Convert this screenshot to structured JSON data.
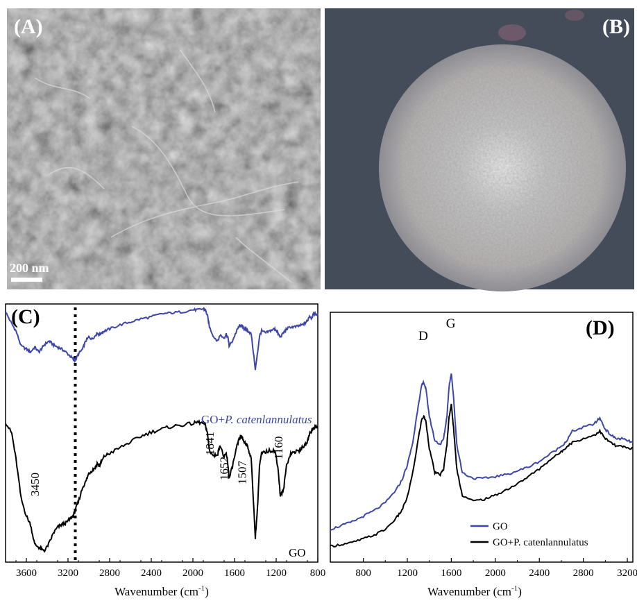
{
  "panels": {
    "A": {
      "label": "(A)",
      "scalebar": "200 nm"
    },
    "B": {
      "label": "(B)"
    },
    "C": {
      "label": "(C)"
    },
    "D": {
      "label": "(D)"
    }
  },
  "chart_data": [
    {
      "type": "line",
      "panel": "C",
      "xlabel": "Wavenumber (cm",
      "xlabel_sup": "-1",
      "xlabel_close": ")",
      "xlim": [
        3800,
        800
      ],
      "x_reversed": true,
      "y_ticks_shown": false,
      "xticks": [
        3600,
        3200,
        2800,
        2400,
        2000,
        1600,
        1200,
        800
      ],
      "dotted_line_x": 3130,
      "series": [
        {
          "name": "GO+P. catenlannulatus",
          "label_prefix": "GO+",
          "label_italic": "P. catenlannulatus",
          "color": "#3b46a8",
          "x": [
            3800,
            3740,
            3700,
            3650,
            3600,
            3560,
            3520,
            3480,
            3450,
            3420,
            3380,
            3340,
            3300,
            3260,
            3220,
            3180,
            3150,
            3130,
            3100,
            3060,
            3030,
            3000,
            2970,
            2940,
            2920,
            2900,
            2880,
            2850,
            2800,
            2700,
            2600,
            2500,
            2400,
            2300,
            2200,
            2100,
            2000,
            1950,
            1900,
            1880,
            1860,
            1841,
            1800,
            1760,
            1740,
            1700,
            1680,
            1660,
            1652,
            1620,
            1580,
            1560,
            1540,
            1520,
            1507,
            1490,
            1470,
            1440,
            1400,
            1380,
            1360,
            1340,
            1300,
            1260,
            1220,
            1200,
            1180,
            1160,
            1130,
            1100,
            1060,
            1020,
            980,
            950,
            920,
            900,
            880,
            860,
            840,
            820,
            800
          ],
          "y": [
            0.97,
            0.85,
            0.78,
            0.63,
            0.6,
            0.57,
            0.62,
            0.57,
            0.61,
            0.65,
            0.68,
            0.64,
            0.62,
            0.6,
            0.57,
            0.53,
            0.5,
            0.49,
            0.55,
            0.6,
            0.68,
            0.72,
            0.7,
            0.73,
            0.76,
            0.74,
            0.76,
            0.78,
            0.8,
            0.84,
            0.87,
            0.9,
            0.92,
            0.95,
            0.96,
            0.97,
            0.99,
            0.99,
            1.0,
            0.99,
            0.93,
            0.82,
            0.72,
            0.68,
            0.74,
            0.71,
            0.75,
            0.7,
            0.63,
            0.68,
            0.78,
            0.82,
            0.84,
            0.82,
            0.8,
            0.8,
            0.78,
            0.75,
            0.4,
            0.55,
            0.73,
            0.78,
            0.76,
            0.78,
            0.8,
            0.79,
            0.75,
            0.72,
            0.76,
            0.8,
            0.82,
            0.82,
            0.83,
            0.84,
            0.86,
            0.88,
            0.93,
            0.91,
            0.95,
            0.95,
            0.93
          ]
        },
        {
          "name": "GO",
          "color": "#000000",
          "x": [
            3800,
            3740,
            3700,
            3650,
            3600,
            3560,
            3520,
            3480,
            3450,
            3420,
            3380,
            3340,
            3300,
            3260,
            3220,
            3180,
            3150,
            3130,
            3100,
            3060,
            3030,
            3000,
            2970,
            2940,
            2920,
            2900,
            2880,
            2850,
            2800,
            2700,
            2600,
            2500,
            2400,
            2300,
            2200,
            2100,
            2000,
            1950,
            1900,
            1880,
            1860,
            1841,
            1800,
            1760,
            1740,
            1700,
            1680,
            1660,
            1652,
            1620,
            1580,
            1560,
            1540,
            1520,
            1507,
            1490,
            1470,
            1440,
            1400,
            1380,
            1360,
            1340,
            1300,
            1260,
            1220,
            1200,
            1180,
            1160,
            1130,
            1100,
            1060,
            1020,
            980,
            950,
            920,
            900,
            880,
            860,
            840,
            820,
            800
          ],
          "y": [
            0.96,
            0.88,
            0.7,
            0.42,
            0.3,
            0.24,
            0.1,
            0.08,
            0.06,
            0.06,
            0.11,
            0.18,
            0.22,
            0.24,
            0.25,
            0.28,
            0.3,
            0.34,
            0.4,
            0.5,
            0.54,
            0.6,
            0.62,
            0.64,
            0.67,
            0.65,
            0.68,
            0.72,
            0.74,
            0.78,
            0.82,
            0.86,
            0.89,
            0.91,
            0.93,
            0.94,
            0.95,
            0.96,
            0.95,
            0.94,
            0.88,
            0.76,
            0.72,
            0.74,
            0.8,
            0.71,
            0.74,
            0.64,
            0.56,
            0.65,
            0.78,
            0.83,
            0.86,
            0.84,
            0.82,
            0.81,
            0.78,
            0.7,
            0.15,
            0.35,
            0.65,
            0.74,
            0.75,
            0.76,
            0.76,
            0.72,
            0.62,
            0.44,
            0.48,
            0.66,
            0.74,
            0.75,
            0.76,
            0.78,
            0.8,
            0.82,
            0.88,
            0.9,
            0.92,
            0.93,
            0.92
          ]
        }
      ],
      "annotations": [
        "3450",
        "1841",
        "1652",
        "1507",
        "1160"
      ]
    },
    {
      "type": "line",
      "panel": "D",
      "xlabel": "Wavenumber (cm",
      "xlabel_sup": "-1",
      "xlabel_close": ")",
      "xlim": [
        500,
        3250
      ],
      "xticks": [
        800,
        1200,
        1600,
        2000,
        2400,
        2800,
        3200
      ],
      "y_ticks_shown": false,
      "peak_labels": [
        "D",
        "G"
      ],
      "series": [
        {
          "name": "GO",
          "color": "#3b46a8",
          "x": [
            500,
            600,
            700,
            800,
            900,
            1000,
            1100,
            1150,
            1200,
            1250,
            1300,
            1330,
            1350,
            1370,
            1400,
            1450,
            1500,
            1530,
            1560,
            1580,
            1600,
            1620,
            1650,
            1700,
            1800,
            1900,
            2000,
            2100,
            2200,
            2300,
            2400,
            2500,
            2600,
            2650,
            2700,
            2800,
            2900,
            2950,
            3000,
            3050,
            3100,
            3150,
            3200,
            3250
          ],
          "y": [
            0.1,
            0.12,
            0.14,
            0.17,
            0.2,
            0.24,
            0.31,
            0.36,
            0.44,
            0.56,
            0.76,
            0.86,
            0.88,
            0.84,
            0.7,
            0.57,
            0.55,
            0.58,
            0.7,
            0.86,
            0.93,
            0.8,
            0.55,
            0.4,
            0.37,
            0.37,
            0.38,
            0.39,
            0.41,
            0.43,
            0.46,
            0.5,
            0.54,
            0.57,
            0.62,
            0.64,
            0.66,
            0.69,
            0.63,
            0.6,
            0.58,
            0.58,
            0.57,
            0.56
          ]
        },
        {
          "name": "GO+P. catenlannulatus",
          "color": "#000000",
          "x": [
            500,
            600,
            700,
            800,
            900,
            1000,
            1100,
            1150,
            1200,
            1250,
            1300,
            1330,
            1350,
            1370,
            1400,
            1450,
            1500,
            1530,
            1560,
            1580,
            1600,
            1620,
            1650,
            1700,
            1800,
            1900,
            2000,
            2100,
            2200,
            2300,
            2400,
            2500,
            2600,
            2650,
            2700,
            2800,
            2900,
            2950,
            3000,
            3050,
            3100,
            3150,
            3200,
            3250
          ],
          "y": [
            0.01,
            0.02,
            0.03,
            0.05,
            0.07,
            0.1,
            0.16,
            0.2,
            0.27,
            0.4,
            0.58,
            0.68,
            0.7,
            0.67,
            0.53,
            0.4,
            0.39,
            0.42,
            0.55,
            0.7,
            0.76,
            0.64,
            0.42,
            0.28,
            0.25,
            0.26,
            0.28,
            0.31,
            0.34,
            0.38,
            0.42,
            0.47,
            0.51,
            0.54,
            0.56,
            0.58,
            0.6,
            0.62,
            0.58,
            0.56,
            0.54,
            0.54,
            0.53,
            0.53
          ]
        }
      ]
    }
  ]
}
